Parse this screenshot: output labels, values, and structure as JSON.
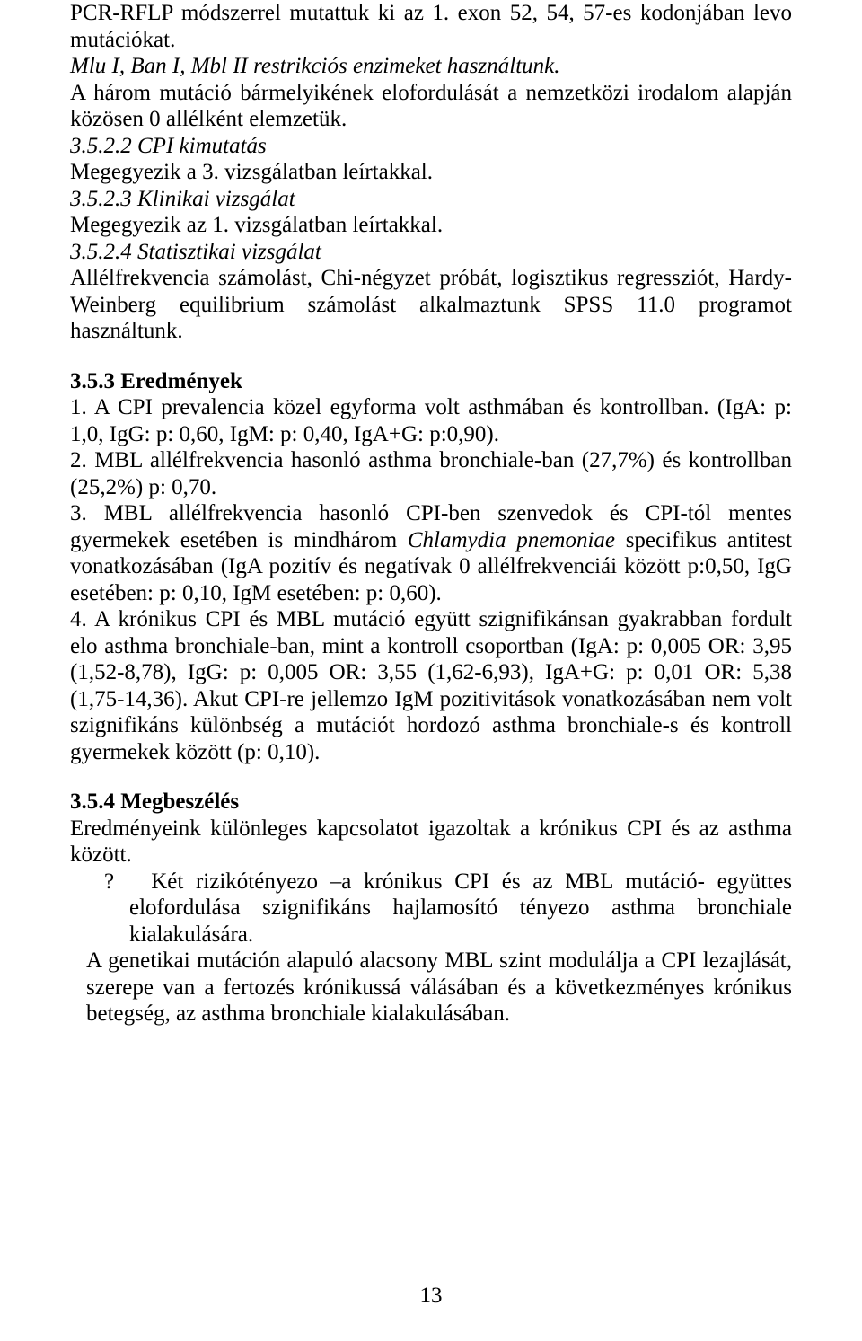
{
  "doc": {
    "text_color": "#000000",
    "background_color": "#ffffff",
    "font_family": "Times New Roman",
    "font_size_pt": 12,
    "page_number": "13",
    "p1a": "PCR-RFLP módszerrel mutattuk ki az 1. exon 52, 54, 57-es kodonjában levo mutációkat.",
    "p1b": "Mlu I, Ban I, Mbl II restrikciós enzimeket használtunk.",
    "p1c": "A három mutáció bármelyikének elofordulását a nemzetközi irodalom alapján közösen 0 allélként elemzetük.",
    "h_3_5_2_2": "3.5.2.2 CPI kimutatás",
    "p2": "Megegyezik a 3. vizsgálatban leírtakkal.",
    "h_3_5_2_3": "3.5.2.3 Klinikai vizsgálat",
    "p3": "Megegyezik az 1. vizsgálatban leírtakkal.",
    "h_3_5_2_4": "3.5.2.4 Statisztikai vizsgálat",
    "p4": "Allélfrekvencia számolást, Chi-négyzet próbát, logisztikus regressziót, Hardy-Weinberg equilibrium számolást alkalmaztunk SPSS 11.0 programot használtunk.",
    "h_3_5_3": "3.5.3 Eredmények",
    "r1": "1. A CPI prevalencia közel egyforma volt asthmában és kontrollban. (IgA: p: 1,0, IgG: p: 0,60, IgM: p: 0,40, IgA+G: p:0,90).",
    "r2": "2. MBL allélfrekvencia hasonló asthma bronchiale-ban (27,7%) és kontrollban (25,2%) p: 0,70.",
    "r3a": "3. MBL allélfrekvencia hasonló CPI-ben szenvedok és CPI-tól mentes gyermekek esetében is mindhárom ",
    "r3b": "Chlamydia pnemoniae",
    "r3c": " specifikus antitest vonatkozásában (IgA pozitív és negatívak 0 allélfrekvenciái között p:0,50, IgG esetében: p: 0,10, IgM esetében: p: 0,60).",
    "r4": "4. A krónikus CPI és MBL mutáció együtt szignifikánsan gyakrabban fordult elo asthma bronchiale-ban, mint a kontroll csoportban (IgA: p: 0,005 OR: 3,95 (1,52-8,78), IgG: p: 0,005 OR: 3,55 (1,62-6,93), IgA+G: p: 0,01 OR: 5,38 (1,75-14,36). Akut CPI-re jellemzo IgM pozitivitások vonatkozásában nem volt szignifikáns különbség a mutációt hordozó asthma bronchiale-s és kontroll gyermekek között (p: 0,10).",
    "h_3_5_4": "3.5.4 Megbeszélés",
    "d1": "Eredményeink különleges kapcsolatot igazoltak a krónikus CPI és az asthma között.",
    "d2_bullet": "?",
    "d2": "Két rizikótényezo –a krónikus CPI és az MBL mutáció- együttes elofordulása szignifikáns hajlamosító tényezo asthma bronchiale kialakulására.",
    "d3": "A genetikai mutáción alapuló alacsony MBL szint modulálja a CPI lezajlását, szerepe van a fertozés krónikussá válásában és a következményes krónikus betegség, az asthma bronchiale kialakulásában."
  }
}
